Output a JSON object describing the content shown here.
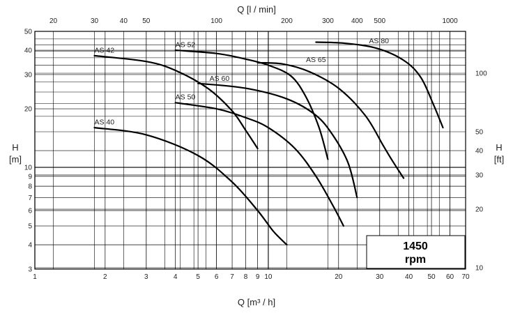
{
  "chart_data": {
    "type": "line",
    "x_top_label": "Q [l / min]",
    "x_bottom_label": "Q [m³ / h]",
    "y_left_label_line1": "H",
    "y_left_label_line2": "[m]",
    "y_right_label_line1": "H",
    "y_right_label_line2": "[ft]",
    "x_scale": "log",
    "y_scale": "log",
    "xlim": [
      1,
      70
    ],
    "ylim": [
      3,
      50
    ],
    "grid": true,
    "x_bottom_ticks": [
      {
        "v": 1,
        "label": "1"
      },
      {
        "v": 2,
        "label": "2"
      },
      {
        "v": 3,
        "label": "3"
      },
      {
        "v": 4,
        "label": "4"
      },
      {
        "v": 5,
        "label": "5"
      },
      {
        "v": 6,
        "label": "6"
      },
      {
        "v": 7,
        "label": "7"
      },
      {
        "v": 8,
        "label": "8"
      },
      {
        "v": 9,
        "label": "9"
      },
      {
        "v": 10,
        "label": "10"
      },
      {
        "v": 20,
        "label": "20"
      },
      {
        "v": 30,
        "label": "30"
      },
      {
        "v": 40,
        "label": "40"
      },
      {
        "v": 50,
        "label": "50"
      },
      {
        "v": 60,
        "label": "60"
      },
      {
        "v": 70,
        "label": "70"
      }
    ],
    "x_top_ticks": [
      {
        "v": 20,
        "label": "20"
      },
      {
        "v": 30,
        "label": "30"
      },
      {
        "v": 40,
        "label": "40"
      },
      {
        "v": 50,
        "label": "50"
      },
      {
        "v": 100,
        "label": "100"
      },
      {
        "v": 200,
        "label": "200"
      },
      {
        "v": 300,
        "label": "300"
      },
      {
        "v": 400,
        "label": "400"
      },
      {
        "v": 500,
        "label": "500"
      },
      {
        "v": 1000,
        "label": "1000"
      }
    ],
    "y_left_ticks": [
      {
        "v": 3,
        "label": "3"
      },
      {
        "v": 4,
        "label": "4"
      },
      {
        "v": 5,
        "label": "5"
      },
      {
        "v": 6,
        "label": "6"
      },
      {
        "v": 7,
        "label": "7"
      },
      {
        "v": 8,
        "label": "8"
      },
      {
        "v": 9,
        "label": "9"
      },
      {
        "v": 10,
        "label": "10"
      },
      {
        "v": 20,
        "label": "20"
      },
      {
        "v": 30,
        "label": "30"
      },
      {
        "v": 40,
        "label": "40"
      },
      {
        "v": 50,
        "label": "50"
      }
    ],
    "y_right_ticks": [
      {
        "v": 10,
        "label": "10"
      },
      {
        "v": 20,
        "label": "20"
      },
      {
        "v": 30,
        "label": "30"
      },
      {
        "v": 40,
        "label": "40"
      },
      {
        "v": 50,
        "label": "50"
      },
      {
        "v": 100,
        "label": "100"
      }
    ],
    "series": [
      {
        "name": "AS 40",
        "points": [
          [
            1.8,
            16
          ],
          [
            3,
            14.7
          ],
          [
            5,
            11.5
          ],
          [
            7,
            8.4
          ],
          [
            9,
            6
          ],
          [
            10.5,
            4.7
          ],
          [
            12,
            4
          ]
        ]
      },
      {
        "name": "AS 42",
        "points": [
          [
            1.8,
            37.5
          ],
          [
            3,
            35
          ],
          [
            4,
            31.5
          ],
          [
            5.5,
            25.5
          ],
          [
            7,
            19.5
          ],
          [
            8,
            15.5
          ],
          [
            9,
            12.5
          ]
        ]
      },
      {
        "name": "AS 50",
        "points": [
          [
            4,
            21.5
          ],
          [
            6,
            20
          ],
          [
            8,
            18
          ],
          [
            10,
            16
          ],
          [
            13,
            12.5
          ],
          [
            16,
            9
          ],
          [
            19,
            6.3
          ],
          [
            21,
            5
          ]
        ]
      },
      {
        "name": "AS 52",
        "points": [
          [
            4,
            40
          ],
          [
            6,
            38.5
          ],
          [
            8,
            36
          ],
          [
            10,
            33.5
          ],
          [
            12.5,
            29.5
          ],
          [
            14.5,
            23
          ],
          [
            16.5,
            16
          ],
          [
            18,
            11
          ]
        ]
      },
      {
        "name": "AS 60",
        "points": [
          [
            5,
            27
          ],
          [
            8,
            25.5
          ],
          [
            12,
            22.5
          ],
          [
            16,
            18.5
          ],
          [
            19,
            14.5
          ],
          [
            22,
            10.5
          ],
          [
            24,
            7
          ]
        ]
      },
      {
        "name": "AS 65",
        "points": [
          [
            9,
            34.5
          ],
          [
            11.5,
            34
          ],
          [
            15,
            31
          ],
          [
            20,
            25.5
          ],
          [
            26,
            18.5
          ],
          [
            31,
            13
          ],
          [
            34,
            10.8
          ],
          [
            38,
            8.8
          ]
        ]
      },
      {
        "name": "AS 80",
        "points": [
          [
            16,
            44
          ],
          [
            21,
            43.5
          ],
          [
            29,
            41
          ],
          [
            38,
            35.5
          ],
          [
            45,
            29
          ],
          [
            51,
            21
          ],
          [
            56,
            16
          ]
        ]
      }
    ],
    "annotation": {
      "line1": "1450",
      "line2": "rpm"
    }
  }
}
